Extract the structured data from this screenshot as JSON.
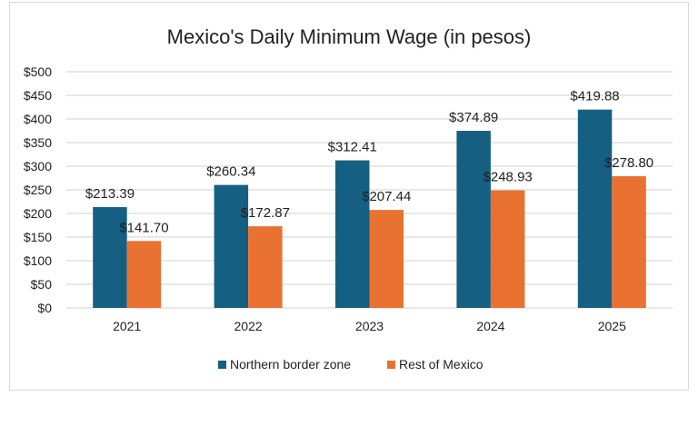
{
  "chart_data": {
    "type": "bar",
    "title": "Mexico's Daily Minimum Wage (in pesos)",
    "xlabel": "",
    "ylabel": "",
    "categories": [
      "2021",
      "2022",
      "2023",
      "2024",
      "2025"
    ],
    "series": [
      {
        "name": "Northern border zone",
        "color": "#156082",
        "values": [
          213.39,
          260.34,
          312.41,
          374.89,
          419.88
        ],
        "labels": [
          "$213.39",
          "$260.34",
          "$312.41",
          "$374.89",
          "$419.88"
        ]
      },
      {
        "name": "Rest of Mexico",
        "color": "#E97132",
        "values": [
          141.7,
          172.87,
          207.44,
          248.93,
          278.8
        ],
        "labels": [
          "$141.70",
          "$172.87",
          "$207.44",
          "$248.93",
          "$278.80"
        ]
      }
    ],
    "ylim": [
      0,
      500
    ],
    "yticks": [
      "$0",
      "$50",
      "$100",
      "$150",
      "$200",
      "$250",
      "$300",
      "$350",
      "$400",
      "$450",
      "$500"
    ],
    "grid": true,
    "legend": "bottom"
  }
}
